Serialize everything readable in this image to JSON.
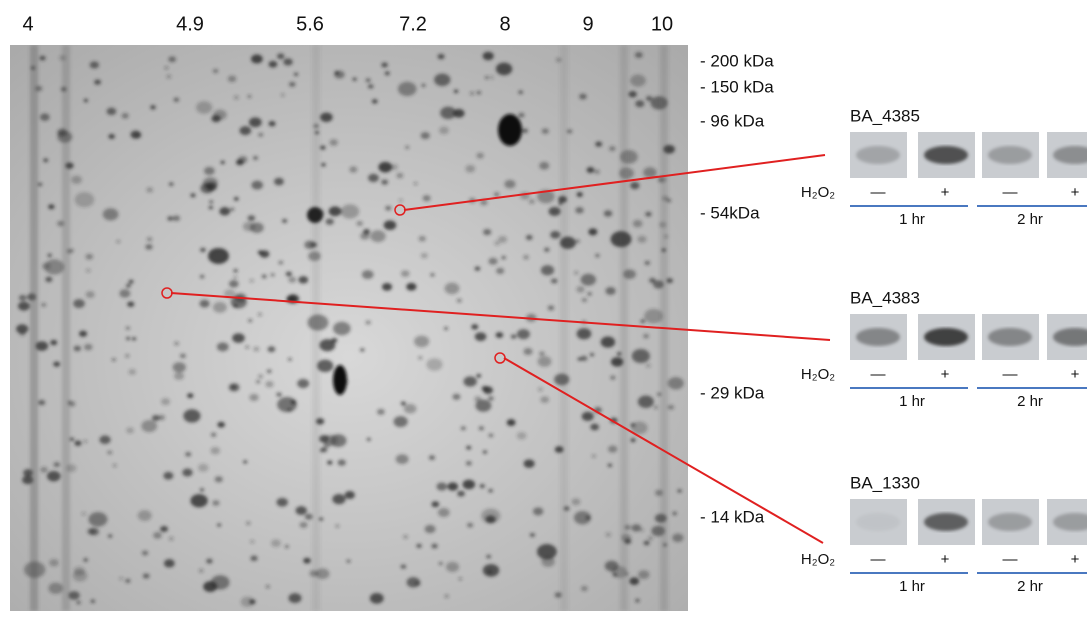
{
  "pI_labels": [
    "4",
    "4.9",
    "5.6",
    "7.2",
    "8",
    "9",
    "10"
  ],
  "mw_labels": [
    "- 200 kDa",
    "- 150 kDa",
    "- 96 kDa",
    "- 54kDa",
    "- 29 kDa",
    "- 14 kDa"
  ],
  "panels": [
    {
      "protein": "BA_4385",
      "treatment": "H₂O₂",
      "signs": [
        "—",
        "+",
        "—",
        "+"
      ],
      "times": [
        "1 hr",
        "2 hr"
      ]
    },
    {
      "protein": "BA_4383",
      "treatment": "H₂O₂",
      "signs": [
        "—",
        "+",
        "—",
        "+"
      ],
      "times": [
        "1 hr",
        "2 hr"
      ]
    },
    {
      "protein": "BA_1330",
      "treatment": "H₂O₂",
      "signs": [
        "—",
        "+",
        "—",
        "+"
      ],
      "times": [
        "1 hr",
        "2 hr"
      ]
    }
  ]
}
